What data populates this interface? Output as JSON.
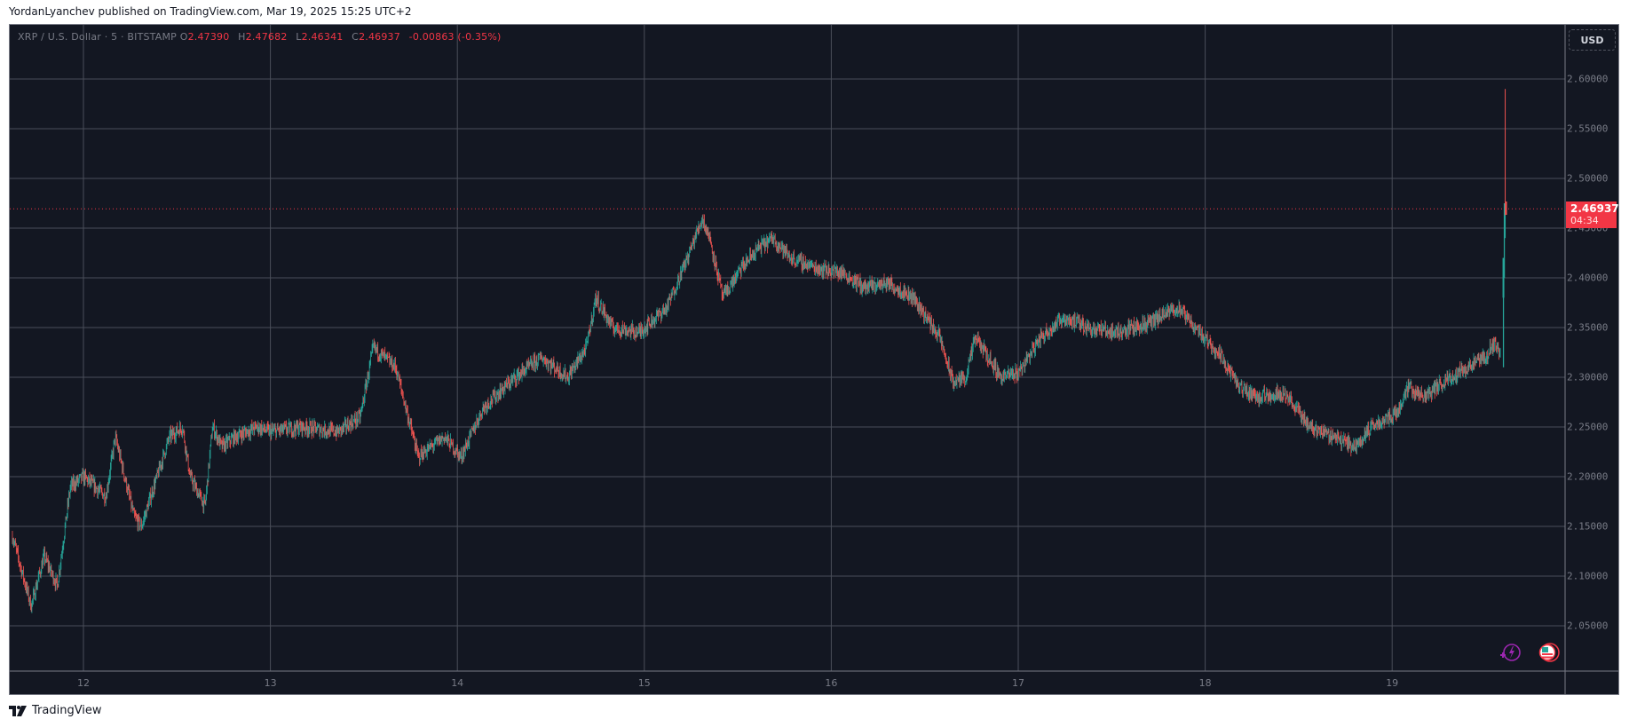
{
  "header": {
    "publish_text": "YordanLyanchev published on TradingView.com, Mar 19, 2025 15:25 UTC+2"
  },
  "legend": {
    "symbol": "XRP / U.S. Dollar · 5 · BITSTAMP",
    "open_label": "O",
    "open": "2.47390",
    "high_label": "H",
    "high": "2.47682",
    "low_label": "L",
    "low": "2.46341",
    "close_label": "C",
    "close": "2.46937",
    "change": "-0.00863 (-0.35%)"
  },
  "price_axis": {
    "currency_button": "USD",
    "last_price": "2.46937",
    "countdown": "04:34"
  },
  "footer": {
    "brand": "TradingView"
  },
  "icons": {
    "lightning": "lightning-plus-icon",
    "flag": "us-flag-icon",
    "logo": "tradingview-logo-icon"
  },
  "colors": {
    "background": "#131722",
    "grid": "#4a4e59",
    "up": "#26a69a",
    "down": "#ef5350",
    "last_price": "#f23645",
    "axis_text": "#787b86"
  },
  "chart_data": {
    "type": "candlestick",
    "title": "XRP / U.S. Dollar · 5 · BITSTAMP",
    "interval": "5 minutes",
    "xlabel": "",
    "ylabel": "USD",
    "x_ticks": [
      "12",
      "13",
      "14",
      "15",
      "16",
      "17",
      "18",
      "19"
    ],
    "y_ticks": [
      "2.60000",
      "2.55000",
      "2.50000",
      "2.45000",
      "2.40000",
      "2.35000",
      "2.30000",
      "2.25000",
      "2.20000",
      "2.15000",
      "2.10000",
      "2.05000"
    ],
    "ylim": [
      2.004,
      2.65
    ],
    "xlim_days": [
      11.6,
      20.0
    ],
    "grid": true,
    "last_price": 2.46937,
    "spike_high": 2.59,
    "ohlc_last": {
      "open": 2.4739,
      "high": 2.47682,
      "low": 2.46341,
      "close": 2.46937
    },
    "path_day_price": [
      [
        11.62,
        2.14
      ],
      [
        11.72,
        2.07
      ],
      [
        11.79,
        2.12
      ],
      [
        11.86,
        2.09
      ],
      [
        11.93,
        2.19
      ],
      [
        12.0,
        2.2
      ],
      [
        12.12,
        2.18
      ],
      [
        12.17,
        2.24
      ],
      [
        12.27,
        2.16
      ],
      [
        12.31,
        2.15
      ],
      [
        12.46,
        2.24
      ],
      [
        12.53,
        2.25
      ],
      [
        12.57,
        2.2
      ],
      [
        12.65,
        2.17
      ],
      [
        12.69,
        2.25
      ],
      [
        12.74,
        2.23
      ],
      [
        12.81,
        2.24
      ],
      [
        12.93,
        2.25
      ],
      [
        13.0,
        2.245
      ],
      [
        13.17,
        2.25
      ],
      [
        13.36,
        2.245
      ],
      [
        13.48,
        2.26
      ],
      [
        13.55,
        2.33
      ],
      [
        13.67,
        2.31
      ],
      [
        13.79,
        2.22
      ],
      [
        13.93,
        2.24
      ],
      [
        14.02,
        2.22
      ],
      [
        14.14,
        2.27
      ],
      [
        14.31,
        2.3
      ],
      [
        14.45,
        2.32
      ],
      [
        14.59,
        2.3
      ],
      [
        14.69,
        2.33
      ],
      [
        14.74,
        2.38
      ],
      [
        14.83,
        2.35
      ],
      [
        14.97,
        2.345
      ],
      [
        15.12,
        2.37
      ],
      [
        15.23,
        2.42
      ],
      [
        15.31,
        2.46
      ],
      [
        15.35,
        2.44
      ],
      [
        15.42,
        2.38
      ],
      [
        15.52,
        2.41
      ],
      [
        15.61,
        2.43
      ],
      [
        15.69,
        2.44
      ],
      [
        15.78,
        2.42
      ],
      [
        15.92,
        2.41
      ],
      [
        16.06,
        2.405
      ],
      [
        16.18,
        2.39
      ],
      [
        16.3,
        2.395
      ],
      [
        16.44,
        2.38
      ],
      [
        16.58,
        2.34
      ],
      [
        16.65,
        2.295
      ],
      [
        16.72,
        2.3
      ],
      [
        16.77,
        2.34
      ],
      [
        16.91,
        2.3
      ],
      [
        17.0,
        2.305
      ],
      [
        17.12,
        2.34
      ],
      [
        17.24,
        2.36
      ],
      [
        17.38,
        2.35
      ],
      [
        17.52,
        2.345
      ],
      [
        17.71,
        2.355
      ],
      [
        17.85,
        2.37
      ],
      [
        17.95,
        2.35
      ],
      [
        18.09,
        2.32
      ],
      [
        18.18,
        2.29
      ],
      [
        18.28,
        2.28
      ],
      [
        18.42,
        2.285
      ],
      [
        18.56,
        2.25
      ],
      [
        18.7,
        2.24
      ],
      [
        18.8,
        2.23
      ],
      [
        18.89,
        2.25
      ],
      [
        19.03,
        2.265
      ],
      [
        19.08,
        2.29
      ],
      [
        19.17,
        2.28
      ],
      [
        19.31,
        2.3
      ],
      [
        19.5,
        2.32
      ],
      [
        19.55,
        2.335
      ],
      [
        19.58,
        2.32
      ],
      [
        19.6,
        2.469
      ]
    ]
  }
}
